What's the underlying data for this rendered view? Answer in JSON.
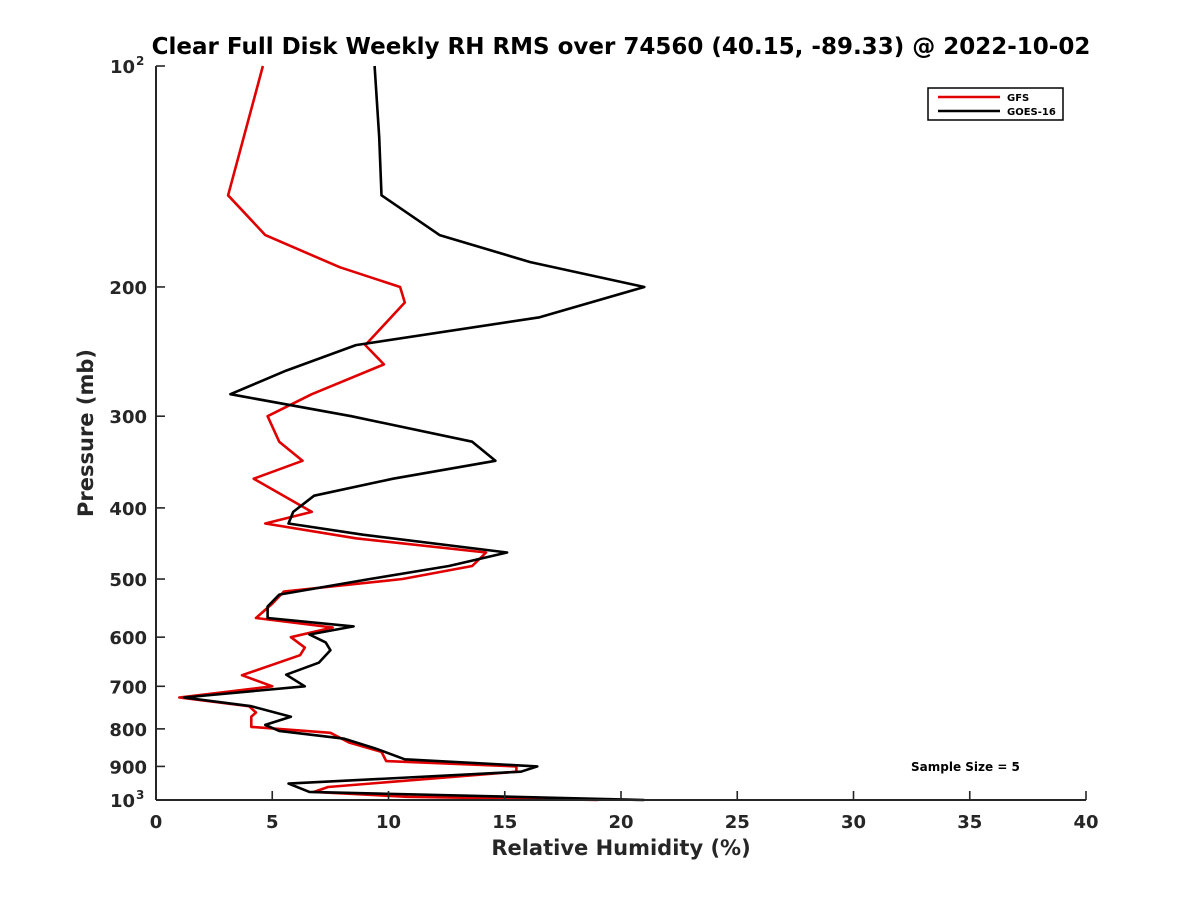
{
  "chart_data": {
    "type": "line",
    "title": "Clear Full Disk Weekly RH RMS over 74560 (40.15, -89.33) @ 2022-10-02",
    "xlabel": "Relative Humidity (%)",
    "ylabel": "Pressure (mb)",
    "xlim": [
      0,
      40
    ],
    "ylim": [
      100,
      1000
    ],
    "yscale": "log",
    "y_reversed": true,
    "grid": false,
    "legend_position": "top-right",
    "x_ticks": [
      "0",
      "5",
      "10",
      "15",
      "20",
      "25",
      "30",
      "35",
      "40"
    ],
    "y_ticks": [
      {
        "value": 100,
        "base": "10",
        "exp": "2"
      },
      {
        "value": 200,
        "label": "200"
      },
      {
        "value": 300,
        "label": "300"
      },
      {
        "value": 400,
        "label": "400"
      },
      {
        "value": 500,
        "label": "500"
      },
      {
        "value": 600,
        "label": "600"
      },
      {
        "value": 700,
        "label": "700"
      },
      {
        "value": 800,
        "label": "800"
      },
      {
        "value": 900,
        "label": "900"
      },
      {
        "value": 1000,
        "base": "10",
        "exp": "3"
      }
    ],
    "annotation": "Sample Size = 5",
    "series": [
      {
        "name": "GFS",
        "color": "#e00000",
        "points": [
          [
            4.6,
            100
          ],
          [
            3.1,
            150
          ],
          [
            4.7,
            170
          ],
          [
            7.9,
            188
          ],
          [
            10.5,
            200
          ],
          [
            10.7,
            210
          ],
          [
            9.0,
            240
          ],
          [
            9.8,
            255
          ],
          [
            6.7,
            280
          ],
          [
            4.8,
            300
          ],
          [
            5.3,
            325
          ],
          [
            6.3,
            345
          ],
          [
            4.2,
            365
          ],
          [
            6.7,
            405
          ],
          [
            4.7,
            420
          ],
          [
            8.6,
            440
          ],
          [
            14.2,
            460
          ],
          [
            13.6,
            480
          ],
          [
            10.6,
            500
          ],
          [
            5.5,
            520
          ],
          [
            5.0,
            540
          ],
          [
            4.3,
            565
          ],
          [
            7.6,
            582
          ],
          [
            5.8,
            600
          ],
          [
            6.4,
            620
          ],
          [
            6.2,
            635
          ],
          [
            3.7,
            676
          ],
          [
            5.0,
            700
          ],
          [
            1.0,
            725
          ],
          [
            4.0,
            745
          ],
          [
            4.3,
            760
          ],
          [
            4.1,
            770
          ],
          [
            4.1,
            795
          ],
          [
            7.5,
            810
          ],
          [
            8.3,
            835
          ],
          [
            9.7,
            860
          ],
          [
            9.9,
            885
          ],
          [
            15.5,
            900
          ],
          [
            15.5,
            915
          ],
          [
            7.4,
            960
          ],
          [
            6.8,
            975
          ],
          [
            10.8,
            990
          ],
          [
            19.0,
            1000
          ]
        ]
      },
      {
        "name": "GOES-16",
        "color": "#000000",
        "points": [
          [
            9.4,
            100
          ],
          [
            9.6,
            125
          ],
          [
            9.7,
            150
          ],
          [
            12.2,
            170
          ],
          [
            16.1,
            185
          ],
          [
            21.0,
            200
          ],
          [
            16.5,
            220
          ],
          [
            8.6,
            240
          ],
          [
            5.6,
            260
          ],
          [
            3.2,
            280
          ],
          [
            8.4,
            300
          ],
          [
            13.6,
            325
          ],
          [
            14.6,
            345
          ],
          [
            10.2,
            365
          ],
          [
            6.8,
            385
          ],
          [
            5.9,
            405
          ],
          [
            5.7,
            420
          ],
          [
            8.9,
            435
          ],
          [
            15.1,
            460
          ],
          [
            12.6,
            480
          ],
          [
            9.2,
            500
          ],
          [
            5.3,
            525
          ],
          [
            4.8,
            545
          ],
          [
            4.8,
            565
          ],
          [
            8.5,
            580
          ],
          [
            6.6,
            595
          ],
          [
            7.3,
            610
          ],
          [
            7.5,
            625
          ],
          [
            7.0,
            650
          ],
          [
            5.6,
            675
          ],
          [
            6.4,
            700
          ],
          [
            1.2,
            725
          ],
          [
            4.1,
            745
          ],
          [
            5.8,
            770
          ],
          [
            4.7,
            790
          ],
          [
            5.3,
            805
          ],
          [
            8.1,
            825
          ],
          [
            9.4,
            850
          ],
          [
            10.7,
            880
          ],
          [
            16.4,
            900
          ],
          [
            15.7,
            915
          ],
          [
            5.7,
            950
          ],
          [
            6.6,
            975
          ],
          [
            21.0,
            1000
          ]
        ]
      }
    ]
  }
}
